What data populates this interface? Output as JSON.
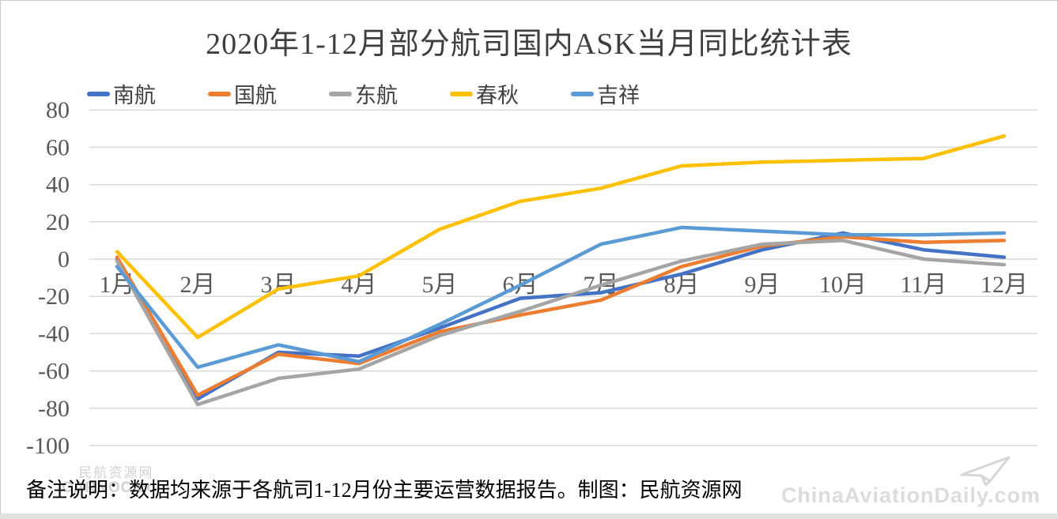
{
  "title": "2020年1-12月部分航司国内ASK当月同比统计表",
  "note": "备注说明：数据均来源于各航司1-12月份主要运营数据报告。制图：民航资源网",
  "watermarks": {
    "left_line1": "民航资源网",
    "left_line2": "CARNOC.com",
    "right": "ChinaAviationDaily.com"
  },
  "colors": {
    "grid": "#d9d9d9",
    "tick_label": "#595959",
    "title_text": "#3f3f3f",
    "frame": "#c9c9c9"
  },
  "chart_data": {
    "type": "line",
    "title": "2020年1-12月部分航司国内ASK当月同比统计表",
    "categories": [
      "1月",
      "2月",
      "3月",
      "4月",
      "5月",
      "6月",
      "7月",
      "8月",
      "9月",
      "10月",
      "11月",
      "12月"
    ],
    "series": [
      {
        "name": "南航",
        "color": "#4472C4",
        "values": [
          0,
          -75,
          -50,
          -52,
          -37,
          -21,
          -18,
          -8,
          5,
          14,
          5,
          1
        ]
      },
      {
        "name": "国航",
        "color": "#ED7D31",
        "values": [
          1,
          -73,
          -51,
          -56,
          -39,
          -30,
          -22,
          -4,
          7,
          12,
          9,
          10
        ]
      },
      {
        "name": "东航",
        "color": "#A5A5A5",
        "values": [
          -1,
          -78,
          -64,
          -59,
          -41,
          -28,
          -14,
          -1,
          8,
          10,
          0,
          -3
        ]
      },
      {
        "name": "春秋",
        "color": "#FFC000",
        "values": [
          4,
          -42,
          -16,
          -9,
          16,
          31,
          38,
          50,
          52,
          53,
          54,
          66
        ]
      },
      {
        "name": "吉祥",
        "color": "#5B9BD5",
        "values": [
          -4,
          -58,
          -46,
          -55,
          -35,
          -14,
          8,
          17,
          15,
          13,
          13,
          14
        ]
      }
    ],
    "ylim": [
      -100,
      80
    ],
    "ytick_step": 20,
    "xlabel": "",
    "ylabel": "",
    "grid": true,
    "legend_position": "top-left"
  }
}
